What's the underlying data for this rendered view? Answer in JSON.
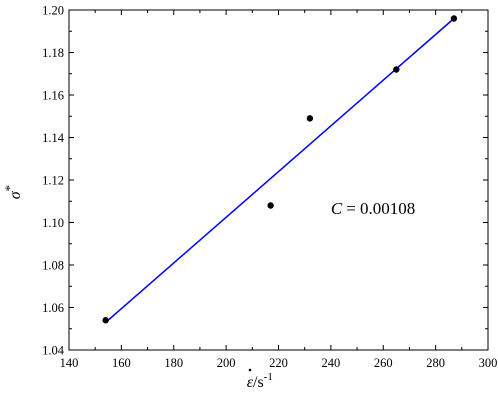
{
  "chart_data": {
    "type": "scatter",
    "title": "",
    "xlabel_symbol": "ε",
    "xlabel_unit": "/s",
    "xlabel_exp": "-1",
    "ylabel_symbol": "σ",
    "ylabel_sup": "*",
    "xlim": [
      140,
      300
    ],
    "ylim": [
      1.04,
      1.2
    ],
    "xticks": [
      140,
      160,
      180,
      200,
      220,
      240,
      260,
      280,
      300
    ],
    "yticks": [
      1.04,
      1.06,
      1.08,
      1.1,
      1.12,
      1.14,
      1.16,
      1.18,
      1.2
    ],
    "xtick_labels": [
      "140",
      "160",
      "180",
      "200",
      "220",
      "240",
      "260",
      "280",
      "300"
    ],
    "ytick_labels": [
      "1.04",
      "1.06",
      "1.08",
      "1.10",
      "1.12",
      "1.14",
      "1.16",
      "1.18",
      "1.20"
    ],
    "points": [
      {
        "x": 154,
        "y": 1.054
      },
      {
        "x": 217,
        "y": 1.108
      },
      {
        "x": 232,
        "y": 1.149
      },
      {
        "x": 265,
        "y": 1.172
      },
      {
        "x": 287,
        "y": 1.196
      }
    ],
    "fit_line": {
      "x": [
        154,
        287
      ],
      "y": [
        1.053,
        1.196
      ],
      "color": "#0000ff"
    },
    "point_color": "#000000",
    "annotation": {
      "label": "C",
      "value": "= 0.00108",
      "x": 240,
      "y": 1.104
    },
    "grid": false
  }
}
